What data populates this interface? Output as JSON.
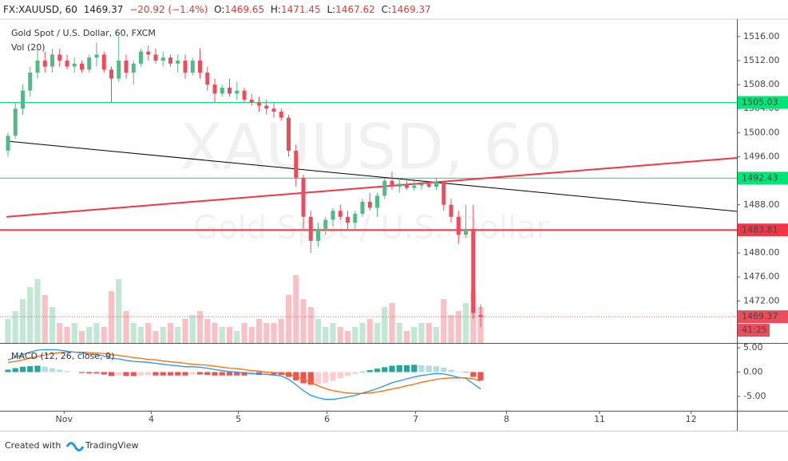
{
  "chart_data": {
    "type": "candlestick",
    "header": {
      "symbol": "FX:XAUUSD, 60",
      "last": "1469.37",
      "change": "−20.92 (−1.4%)",
      "o_label": "O:",
      "o": "1469.65",
      "h_label": "H:",
      "h": "1471.45",
      "l_label": "L:",
      "l": "1467.62",
      "c_label": "C:",
      "c": "1469.37"
    },
    "title": "Gold Spot / U.S. Dollar, 60, FXCM",
    "volume_label": "Vol (20)",
    "macd_label": "MACD (12, 26, close, 9)",
    "watermark": "XAUUSD, 60",
    "watermark_sub": "Gold Spot / U.S. Dollar",
    "up_color": "#53b987",
    "down_color": "#eb4d5c",
    "candles": [
      [
        1497,
        1500,
        1496,
        1499.5
      ],
      [
        1499.5,
        1505,
        1499,
        1504
      ],
      [
        1504,
        1508,
        1503,
        1507
      ],
      [
        1507,
        1511,
        1506,
        1510
      ],
      [
        1510,
        1514,
        1509,
        1512
      ],
      [
        1512,
        1513.5,
        1510,
        1511
      ],
      [
        1511,
        1514,
        1510,
        1513
      ],
      [
        1513,
        1514,
        1511,
        1512
      ],
      [
        1512,
        1513,
        1510.5,
        1511
      ],
      [
        1511,
        1512.5,
        1510,
        1511.5
      ],
      [
        1511.5,
        1512,
        1510,
        1510.5
      ],
      [
        1510.5,
        1513,
        1510,
        1512.5
      ],
      [
        1512.5,
        1515,
        1511,
        1513
      ],
      [
        1513,
        1513.5,
        1510,
        1510.5
      ],
      [
        1510.5,
        1511,
        1505,
        1509
      ],
      [
        1509,
        1516,
        1508.5,
        1512
      ],
      [
        1512,
        1513,
        1509,
        1510
      ],
      [
        1510,
        1512,
        1508,
        1511.5
      ],
      [
        1511.5,
        1514,
        1511,
        1513.5
      ],
      [
        1513.5,
        1514.5,
        1512,
        1513
      ],
      [
        1513,
        1514,
        1511.5,
        1512
      ],
      [
        1512,
        1513.5,
        1511,
        1512.5
      ],
      [
        1512.5,
        1513,
        1511,
        1511.5
      ],
      [
        1511.5,
        1513,
        1510,
        1512
      ],
      [
        1512,
        1513,
        1509,
        1510
      ],
      [
        1510,
        1512.5,
        1509.5,
        1512
      ],
      [
        1512,
        1514,
        1509,
        1510
      ],
      [
        1510,
        1511,
        1507,
        1508
      ],
      [
        1508,
        1509,
        1505,
        1506.5
      ],
      [
        1506.5,
        1508,
        1506,
        1507.5
      ],
      [
        1507.5,
        1509,
        1506,
        1506.5
      ],
      [
        1506.5,
        1508.5,
        1505.5,
        1507
      ],
      [
        1507,
        1507.5,
        1505,
        1505.5
      ],
      [
        1505.5,
        1506.5,
        1504.5,
        1505
      ],
      [
        1505,
        1506,
        1503.5,
        1504.5
      ],
      [
        1504.5,
        1505.5,
        1503,
        1504
      ],
      [
        1504,
        1505,
        1502.5,
        1503.5
      ],
      [
        1503.5,
        1504,
        1502,
        1502.5
      ],
      [
        1502.5,
        1503,
        1496,
        1497
      ],
      [
        1497,
        1498,
        1491,
        1492.5
      ],
      [
        1492.5,
        1493,
        1484,
        1486
      ],
      [
        1486,
        1487,
        1480,
        1482
      ],
      [
        1482,
        1485,
        1481,
        1484
      ],
      [
        1484,
        1486,
        1483,
        1485.5
      ],
      [
        1485.5,
        1487.5,
        1484.5,
        1487
      ],
      [
        1487,
        1488,
        1485.5,
        1486
      ],
      [
        1486,
        1487,
        1484,
        1485
      ],
      [
        1485,
        1487,
        1484,
        1486.5
      ],
      [
        1486.5,
        1489,
        1486,
        1488.5
      ],
      [
        1488.5,
        1490,
        1487,
        1487.5
      ],
      [
        1487.5,
        1490,
        1486,
        1489.5
      ],
      [
        1489.5,
        1492.5,
        1489,
        1492
      ],
      [
        1492,
        1493.5,
        1490.5,
        1491
      ],
      [
        1491,
        1492.5,
        1490,
        1491.5
      ],
      [
        1491.5,
        1492,
        1490.5,
        1490.8
      ],
      [
        1490.8,
        1492,
        1490.3,
        1491.2
      ],
      [
        1491.2,
        1492,
        1490.5,
        1491.5
      ],
      [
        1491.5,
        1492,
        1490.8,
        1491
      ],
      [
        1491,
        1492.5,
        1490.5,
        1491.8
      ],
      [
        1491.8,
        1492,
        1487,
        1488
      ],
      [
        1488,
        1489,
        1485,
        1486
      ],
      [
        1486,
        1487,
        1481.5,
        1483
      ],
      [
        1483,
        1488,
        1482.5,
        1484
      ],
      [
        1484,
        1488,
        1469,
        1470
      ],
      [
        1469.65,
        1471.45,
        1467.62,
        1469.37
      ]
    ],
    "volumes": [
      30,
      40,
      55,
      70,
      80,
      60,
      45,
      25,
      20,
      25,
      15,
      20,
      25,
      20,
      65,
      80,
      40,
      25,
      20,
      25,
      15,
      20,
      25,
      20,
      30,
      35,
      40,
      30,
      25,
      20,
      20,
      15,
      25,
      20,
      30,
      25,
      25,
      30,
      60,
      85,
      55,
      45,
      30,
      20,
      25,
      20,
      15,
      20,
      25,
      30,
      25,
      45,
      50,
      25,
      15,
      20,
      25,
      25,
      20,
      55,
      35,
      40,
      50,
      65,
      45
    ],
    "macd": [
      2.5,
      3.0,
      3.6,
      4.1,
      4.5,
      4.6,
      4.6,
      4.5,
      4.3,
      4.1,
      3.9,
      3.7,
      3.6,
      3.3,
      2.8,
      2.7,
      2.4,
      2.2,
      2.1,
      2.0,
      1.8,
      1.6,
      1.4,
      1.3,
      1.1,
      1.1,
      1.0,
      0.8,
      0.5,
      0.3,
      0.1,
      0.0,
      -0.2,
      -0.3,
      -0.4,
      -0.5,
      -0.6,
      -0.8,
      -1.5,
      -2.6,
      -3.8,
      -4.8,
      -5.3,
      -5.6,
      -5.6,
      -5.4,
      -5.1,
      -4.8,
      -4.3,
      -3.9,
      -3.4,
      -2.8,
      -2.2,
      -1.8,
      -1.4,
      -1.0,
      -0.7,
      -0.5,
      -0.3,
      -0.4,
      -0.7,
      -1.1,
      -1.3,
      -2.4,
      -3.5
    ],
    "signal": [
      2.0,
      2.2,
      2.5,
      2.9,
      3.2,
      3.5,
      3.8,
      4.0,
      4.1,
      4.1,
      4.1,
      4.0,
      3.9,
      3.8,
      3.6,
      3.4,
      3.2,
      3.0,
      2.8,
      2.6,
      2.5,
      2.3,
      2.1,
      2.0,
      1.8,
      1.6,
      1.5,
      1.4,
      1.2,
      1.0,
      0.8,
      0.7,
      0.5,
      0.3,
      0.2,
      0.0,
      -0.1,
      -0.2,
      -0.5,
      -0.9,
      -1.5,
      -2.2,
      -2.8,
      -3.4,
      -3.8,
      -4.1,
      -4.3,
      -4.4,
      -4.4,
      -4.3,
      -4.1,
      -3.8,
      -3.5,
      -3.2,
      -2.8,
      -2.5,
      -2.1,
      -1.8,
      -1.5,
      -1.3,
      -1.2,
      -1.2,
      -1.2,
      -1.4,
      -1.8
    ],
    "histogram": [
      0.5,
      0.8,
      1.1,
      1.2,
      1.3,
      1.1,
      0.8,
      0.5,
      0.2,
      0.0,
      -0.2,
      -0.3,
      -0.3,
      -0.5,
      -0.8,
      -0.7,
      -0.8,
      -0.8,
      -0.7,
      -0.6,
      -0.7,
      -0.7,
      -0.7,
      -0.7,
      -0.7,
      -0.5,
      -0.5,
      -0.6,
      -0.7,
      -0.7,
      -0.7,
      -0.7,
      -0.7,
      -0.6,
      -0.6,
      -0.5,
      -0.5,
      -0.6,
      -1.0,
      -1.7,
      -2.3,
      -2.6,
      -2.5,
      -2.2,
      -1.8,
      -1.3,
      -0.8,
      -0.4,
      0.1,
      0.4,
      0.7,
      1.0,
      1.3,
      1.4,
      1.4,
      1.5,
      1.4,
      1.3,
      1.2,
      0.9,
      0.5,
      0.1,
      -0.1,
      -1.0,
      -1.7
    ],
    "macd_color": "#2196f3",
    "signal_color": "#ff6d00",
    "xlim": [
      -1.08,
      98.7
    ],
    "xticks": [
      {
        "value": 7.6,
        "label": "Nov"
      },
      {
        "value": 19.4,
        "label": "4"
      },
      {
        "value": 31.2,
        "label": "5"
      },
      {
        "value": 43.2,
        "label": "6"
      },
      {
        "value": 55.2,
        "label": "7"
      },
      {
        "value": 67.5,
        "label": "8"
      },
      {
        "value": 80.1,
        "label": "11"
      },
      {
        "value": 92.5,
        "label": "12"
      }
    ],
    "ylim": [
      1465,
      1518.9
    ],
    "yticks": [
      {
        "value": 1516,
        "label": "1516.00"
      },
      {
        "value": 1512,
        "label": "1512.00"
      },
      {
        "value": 1508,
        "label": "1508.00"
      },
      {
        "value": 1504,
        "label": "1504.00"
      },
      {
        "value": 1500,
        "label": "1500.00"
      },
      {
        "value": 1496,
        "label": "1496.00"
      },
      {
        "value": 1492,
        "label": "1492.00"
      },
      {
        "value": 1488,
        "label": "1488.00"
      },
      {
        "value": 1484,
        "label": "1484.00"
      },
      {
        "value": 1480,
        "label": "1480.00"
      },
      {
        "value": 1476,
        "label": "1476.00"
      },
      {
        "value": 1472,
        "label": "1472.00"
      }
    ],
    "y2lim": [
      -7.95,
      5.98
    ],
    "y2ticks": [
      {
        "value": 5,
        "label": "5.00"
      },
      {
        "value": 0,
        "label": "0.00"
      },
      {
        "value": -5,
        "label": "-5.00"
      }
    ],
    "hlines": [
      {
        "value": 1505.03,
        "label": "1505.03",
        "color": "#00e676"
      },
      {
        "value": 1492.43,
        "label": "1492.43",
        "color": "#00e676"
      },
      {
        "value": 1483.81,
        "label": "1483.81",
        "color": "#f23645"
      }
    ],
    "trendlines": [
      {
        "x": [
          -0.2,
          98.7
        ],
        "y": [
          1498.6,
          1486.9
        ],
        "color": "#000000"
      },
      {
        "x": [
          -0.2,
          98.7
        ],
        "y": [
          1486.0,
          1495.8
        ],
        "color": "#f23645"
      }
    ],
    "last_price": {
      "value": 1469.37,
      "label": "1469.37"
    },
    "countdown": "41:25",
    "footer": {
      "created": "Created with",
      "brand": "TradingView"
    }
  }
}
